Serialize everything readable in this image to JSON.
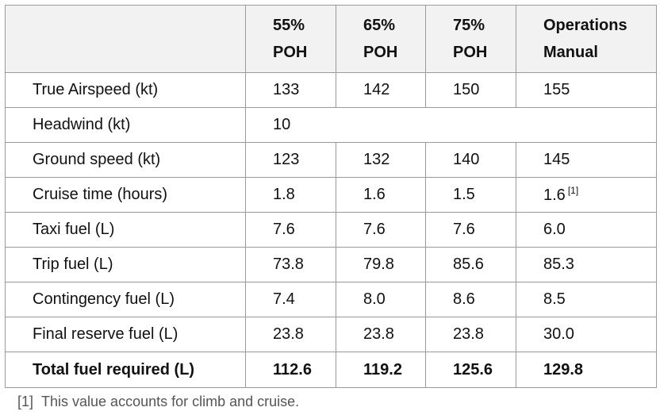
{
  "table": {
    "header": {
      "col0": "",
      "col1": [
        "55%",
        "POH"
      ],
      "col2": [
        "65%",
        "POH"
      ],
      "col3": [
        "75%",
        "POH"
      ],
      "col4": [
        "Operations",
        "Manual"
      ]
    },
    "rows": [
      {
        "label": "True Airspeed (kt)",
        "values": [
          "133",
          "142",
          "150",
          "155"
        ]
      },
      {
        "label": "Headwind (kt)",
        "values": [
          "10"
        ]
      },
      {
        "label": "Ground speed (kt)",
        "values": [
          "123",
          "132",
          "140",
          "145"
        ]
      },
      {
        "label": "Cruise time (hours)",
        "values": [
          "1.8",
          "1.6",
          "1.5",
          "1.6"
        ],
        "footnote_ref": "[1]"
      },
      {
        "label": "Taxi fuel (L)",
        "values": [
          "7.6",
          "7.6",
          "7.6",
          "6.0"
        ]
      },
      {
        "label": "Trip fuel (L)",
        "values": [
          "73.8",
          "79.8",
          "85.6",
          "85.3"
        ]
      },
      {
        "label": "Contingency fuel (L)",
        "values": [
          "7.4",
          "8.0",
          "8.6",
          "8.5"
        ]
      },
      {
        "label": "Final reserve fuel (L)",
        "values": [
          "23.8",
          "23.8",
          "23.8",
          "30.0"
        ]
      }
    ],
    "total": {
      "label": "Total fuel required (L)",
      "values": [
        "112.6",
        "119.2",
        "125.6",
        "129.8"
      ]
    }
  },
  "footnote": {
    "mark": "[1]",
    "text": "This value accounts for climb and cruise."
  },
  "colors": {
    "header_bg": "#f2f2f2",
    "border": "#9a9a9a",
    "footnote_text": "#555555"
  }
}
